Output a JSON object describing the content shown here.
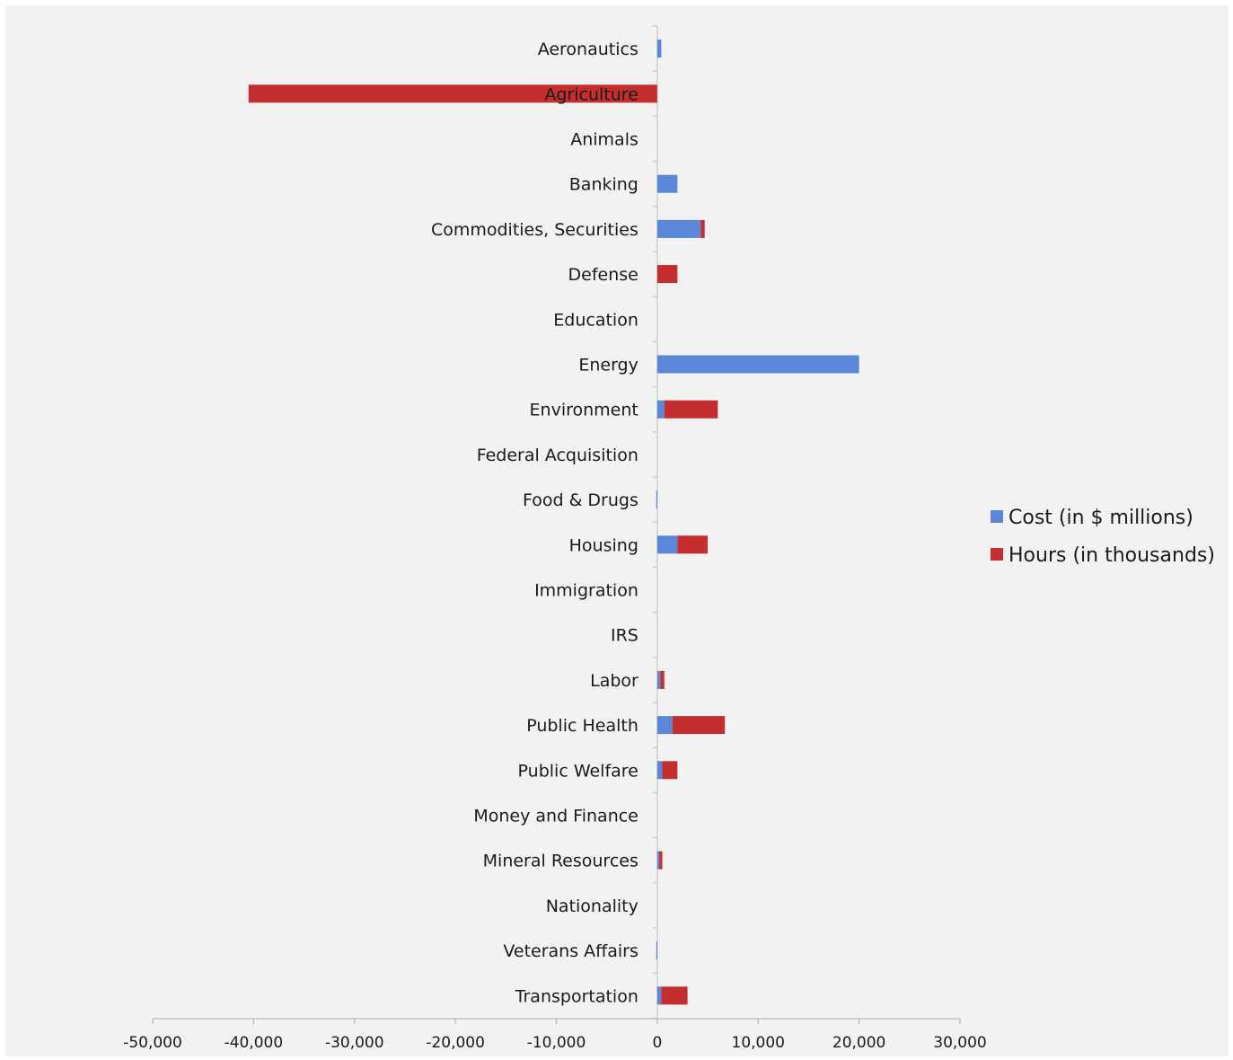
{
  "chart_data": {
    "type": "bar",
    "orientation": "horizontal",
    "stacked": true,
    "categories": [
      "Aeronautics",
      "Agriculture",
      "Animals",
      "Banking",
      "Commodities, Securities",
      "Defense",
      "Education",
      "Energy",
      "Environment",
      "Federal Acquisition",
      "Food & Drugs",
      "Housing",
      "Immigration",
      "IRS",
      "Labor",
      "Public Health",
      "Public Welfare",
      "Money and Finance",
      "Mineral Resources",
      "Nationality",
      "Veterans Affairs",
      "Transportation"
    ],
    "series": [
      {
        "name": "Cost (in $ millions)",
        "color": "#5b87d8",
        "values": [
          400,
          0,
          0,
          2000,
          4300,
          0,
          0,
          20000,
          700,
          0,
          -100,
          2000,
          0,
          0,
          300,
          1500,
          500,
          0,
          200,
          0,
          -100,
          400
        ]
      },
      {
        "name": "Hours (in thousands)",
        "color": "#c42e2e",
        "values": [
          0,
          -40500,
          0,
          0,
          400,
          2000,
          0,
          0,
          5300,
          0,
          0,
          3000,
          0,
          0,
          400,
          5200,
          1500,
          0,
          300,
          0,
          0,
          2600
        ]
      }
    ],
    "xlim": [
      -50000,
      30000
    ],
    "xticks": [
      -50000,
      -40000,
      -30000,
      -20000,
      -10000,
      0,
      10000,
      20000,
      30000
    ],
    "xtick_labels": [
      "-50,000",
      "-40,000",
      "-30,000",
      "-20,000",
      "-10,000",
      "0",
      "10,000",
      "20,000",
      "30,000"
    ],
    "title": "",
    "xlabel": "",
    "ylabel": "",
    "legend_position": "right",
    "grid": false
  }
}
